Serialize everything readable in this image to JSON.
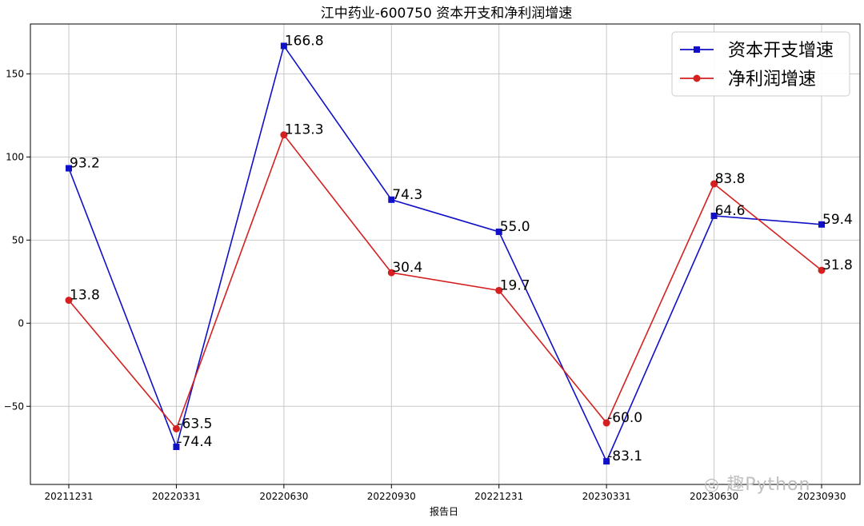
{
  "chart_data": {
    "type": "line",
    "title": "江中药业-600750 资本开支和净利润增速",
    "xlabel": "报告日",
    "ylabel": "",
    "categories": [
      "20211231",
      "20220331",
      "20220630",
      "20220930",
      "20221231",
      "20230331",
      "20230630",
      "20230930"
    ],
    "ylim": [
      -97,
      180
    ],
    "yticks": [
      -50,
      0,
      50,
      100,
      150
    ],
    "grid": true,
    "legend_position": "top-right",
    "series": [
      {
        "name": "资本开支增速",
        "color": "#1010c8",
        "marker": "square",
        "values": [
          93.2,
          -74.4,
          166.8,
          74.3,
          55.0,
          -83.1,
          64.6,
          59.4
        ],
        "labels": [
          "93.2",
          "-74.4",
          "166.8",
          "74.3",
          "55.0",
          "-83.1",
          "64.6",
          "59.4"
        ]
      },
      {
        "name": "净利润增速",
        "color": "#d42020",
        "marker": "circle",
        "values": [
          13.8,
          -63.5,
          113.3,
          30.4,
          19.7,
          -60.0,
          83.8,
          31.8
        ],
        "labels": [
          "13.8",
          "-63.5",
          "113.3",
          "30.4",
          "19.7",
          "-60.0",
          "83.8",
          "31.8"
        ]
      }
    ]
  },
  "watermark": {
    "icon": "wechat-icon",
    "text": "趣Python"
  }
}
